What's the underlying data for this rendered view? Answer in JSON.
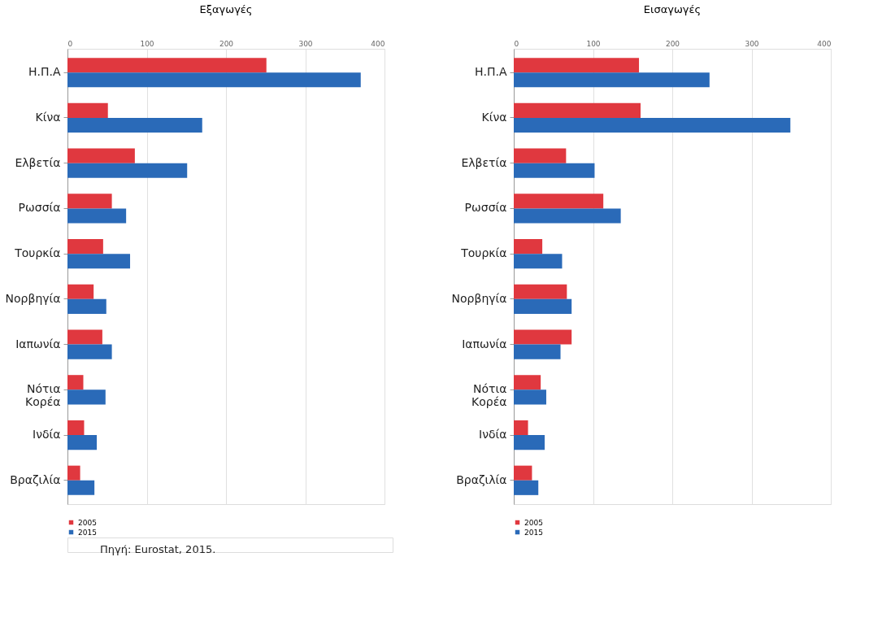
{
  "chart_data": [
    {
      "type": "bar",
      "orientation": "horizontal",
      "title": "Εξαγωγές",
      "categories": [
        "Η.Π.Α",
        "Κίνα",
        "Ελβετία",
        "Ρωσσία",
        "Τουρκία",
        "Νορβηγία",
        "Ιαπωνία",
        "Νότια\nΚορέα",
        "Ινδία",
        "Βραζιλία"
      ],
      "series": [
        {
          "name": "2005",
          "color": "#e0383f",
          "values": [
            251,
            51,
            85,
            56,
            45,
            33,
            44,
            20,
            21,
            16
          ]
        },
        {
          "name": "2015",
          "color": "#2a6ab8",
          "values": [
            370,
            170,
            151,
            74,
            79,
            49,
            56,
            48,
            37,
            34
          ]
        }
      ],
      "xlim": [
        0,
        400
      ],
      "xticks": [
        0,
        100,
        200,
        300,
        400
      ],
      "grid": "x",
      "legend": "bottom",
      "annotations": [
        "Πηγή: Eurostat, 2015."
      ]
    },
    {
      "type": "bar",
      "orientation": "horizontal",
      "title": "Εισαγωγές",
      "categories": [
        "Η.Π.Α",
        "Κίνα",
        "Ελβετία",
        "Ρωσσία",
        "Τουρκία",
        "Νορβηγία",
        "Ιαπωνία",
        "Νότια\nΚορέα",
        "Ινδία",
        "Βραζιλία"
      ],
      "series": [
        {
          "name": "2005",
          "color": "#e0383f",
          "values": [
            158,
            160,
            66,
            113,
            36,
            67,
            73,
            34,
            18,
            23
          ]
        },
        {
          "name": "2015",
          "color": "#2a6ab8",
          "values": [
            247,
            349,
            102,
            135,
            61,
            73,
            59,
            41,
            39,
            31
          ]
        }
      ],
      "xlim": [
        0,
        400
      ],
      "xticks": [
        0,
        100,
        200,
        300,
        400
      ],
      "grid": "x",
      "legend": "bottom"
    }
  ]
}
